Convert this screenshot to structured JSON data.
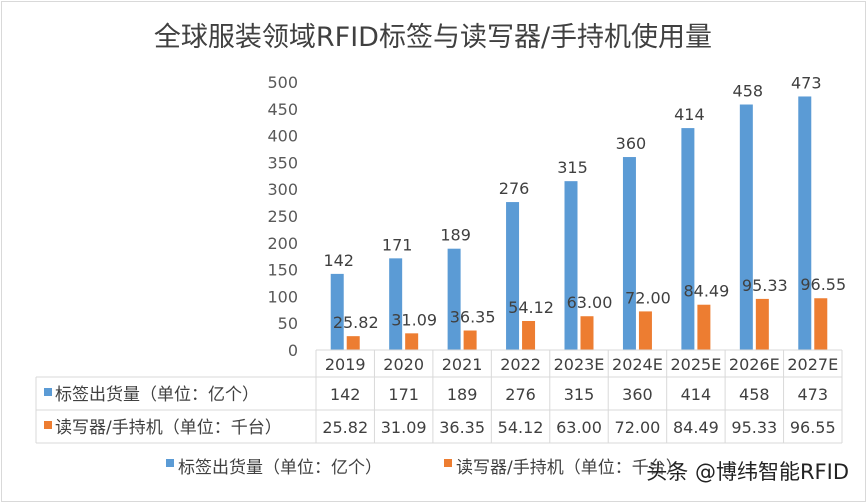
{
  "chart_data": {
    "type": "bar",
    "title": "全球服装领域RFID标签与读写器/手持机使用量",
    "categories": [
      "2019",
      "2020",
      "2021",
      "2022",
      "2023E",
      "2024E",
      "2025E",
      "2026E",
      "2027E"
    ],
    "series": [
      {
        "name": "标签出货量（单位：亿个）",
        "color": "#5b9bd5",
        "values": [
          142,
          171,
          189,
          276,
          315,
          360,
          414,
          458,
          473
        ],
        "labels": [
          "142",
          "171",
          "189",
          "276",
          "315",
          "360",
          "414",
          "458",
          "473"
        ]
      },
      {
        "name": "读写器/手持机（单位：千台）",
        "color": "#ed7d31",
        "values": [
          25.82,
          31.09,
          36.35,
          54.12,
          63.0,
          72.0,
          84.49,
          95.33,
          96.55
        ],
        "labels": [
          "25.82",
          "31.09",
          "36.35",
          "54.12",
          "63.00",
          "72.00",
          "84.49",
          "95.33",
          "96.55"
        ]
      }
    ],
    "ylim": [
      0,
      500
    ],
    "yticks": [
      "0",
      "50",
      "100",
      "150",
      "200",
      "250",
      "300",
      "350",
      "400",
      "450",
      "500"
    ],
    "grid": false,
    "data_table": true,
    "legend": "bottom"
  },
  "watermark": "头条 @博纬智能RFID"
}
